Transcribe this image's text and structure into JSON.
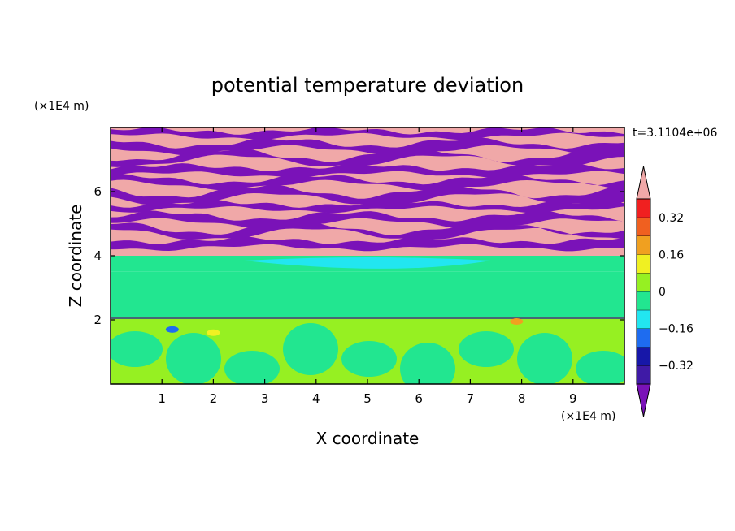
{
  "chart_data": {
    "type": "heatmap",
    "title": "potential temperature deviation",
    "xlabel": "X coordinate",
    "ylabel": "Z coordinate",
    "x_unit": "(×1E4 m)",
    "y_unit": "(×1E4 m)",
    "time_label": "t=3.1104e+06",
    "xlim": [
      0,
      10
    ],
    "ylim": [
      0,
      8
    ],
    "x_ticks": [
      1,
      2,
      3,
      4,
      5,
      6,
      7,
      8,
      9
    ],
    "y_ticks": [
      2,
      4,
      6
    ],
    "colorbar": {
      "levels": [
        -0.4,
        -0.32,
        -0.24,
        -0.16,
        -0.08,
        0,
        0.08,
        0.16,
        0.24,
        0.32,
        0.4
      ],
      "labels": [
        {
          "value": 0.32,
          "text": "0.32"
        },
        {
          "value": 0.16,
          "text": "0.16"
        },
        {
          "value": 0,
          "text": "0"
        },
        {
          "value": -0.16,
          "text": "−0.16"
        },
        {
          "value": -0.32,
          "text": "−0.32"
        }
      ],
      "colors": [
        "#7a12b8",
        "#3f1aa6",
        "#1717a8",
        "#1e6cf0",
        "#22e6f0",
        "#22e690",
        "#96f022",
        "#f0f022",
        "#f0a020",
        "#f06020",
        "#f02020",
        "#f0a8a8"
      ]
    },
    "bands": [
      {
        "z_from": 7.6,
        "z_to": 8.0,
        "pattern": "stripes",
        "value": 0.45
      },
      {
        "z_from": 4.0,
        "z_to": 7.6,
        "pattern": "stripes",
        "value": 0.45
      },
      {
        "z_from": 3.5,
        "z_to": 4.0,
        "pattern": "cyan-lens",
        "value": -0.12
      },
      {
        "z_from": 2.1,
        "z_to": 3.5,
        "pattern": "uniform",
        "value": -0.04
      },
      {
        "z_from": 0.0,
        "z_to": 2.1,
        "pattern": "mixed",
        "value": 0.04
      }
    ]
  }
}
